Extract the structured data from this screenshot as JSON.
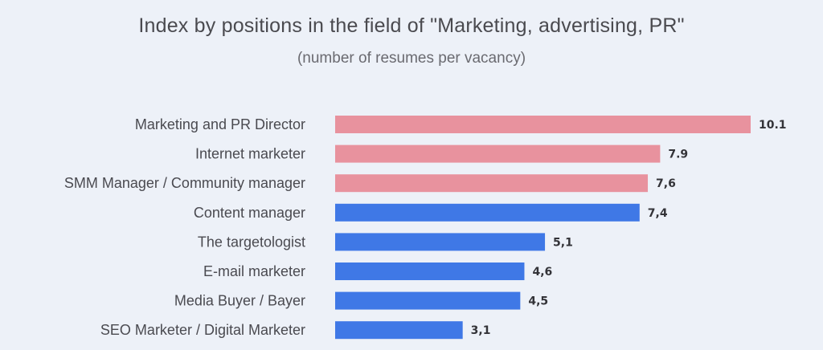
{
  "header": {
    "title": "Index by positions in the field of \"Marketing, advertising, PR\"",
    "subtitle": "(number of resumes per vacancy)"
  },
  "colors": {
    "highlight": "#e8929e",
    "regular": "#3f78e6",
    "background": "#edf1f8"
  },
  "chart_data": {
    "type": "bar",
    "orientation": "horizontal",
    "title": "Index by positions in the field of \"Marketing, advertising, PR\"",
    "subtitle": "(number of resumes per vacancy)",
    "categories": [
      "Marketing and PR Director",
      "Internet marketer",
      "SMM Manager / Community manager",
      "Content manager",
      "The targetologist",
      "E-mail marketer",
      "Media Buyer / Bayer",
      "SEO Marketer / Digital Marketer"
    ],
    "values": [
      10.1,
      7.9,
      7.6,
      7.4,
      5.1,
      4.6,
      4.5,
      3.1
    ],
    "value_labels": [
      "10.1",
      "7.9",
      "7,6",
      "7,4",
      "5,1",
      "4,6",
      "4,5",
      "3,1"
    ],
    "bar_colors": [
      "#e8929e",
      "#e8929e",
      "#e8929e",
      "#3f78e6",
      "#3f78e6",
      "#3f78e6",
      "#3f78e6",
      "#3f78e6"
    ],
    "xlim": [
      0,
      10.1
    ],
    "grid": false,
    "legend": "none"
  }
}
